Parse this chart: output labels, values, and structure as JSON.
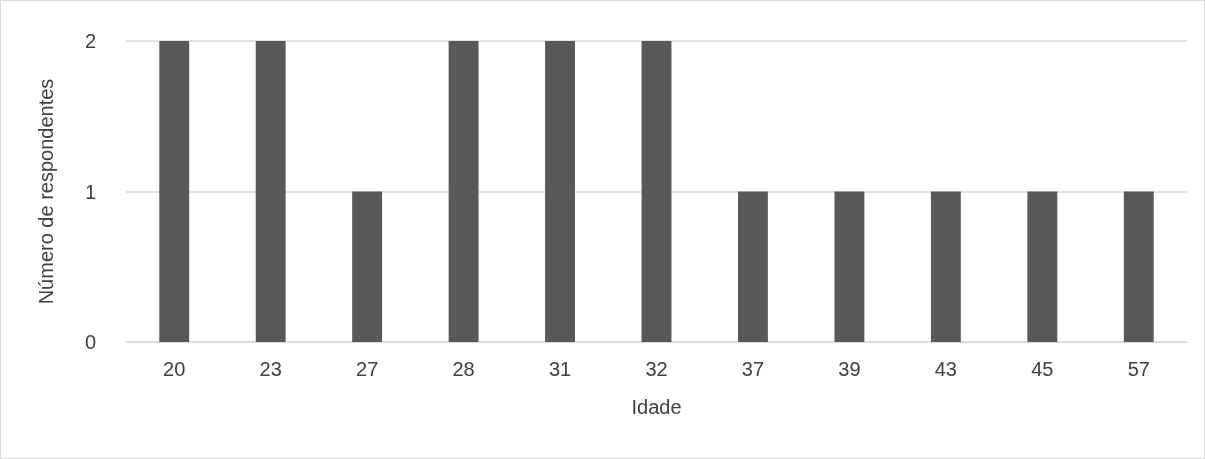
{
  "chart_data": {
    "type": "bar",
    "xlabel": "Idade",
    "ylabel": "Número de respondentes",
    "categories": [
      "20",
      "23",
      "27",
      "28",
      "31",
      "32",
      "37",
      "39",
      "43",
      "45",
      "57"
    ],
    "values": [
      2,
      2,
      1,
      2,
      2,
      2,
      1,
      1,
      1,
      1,
      1
    ],
    "color": "#595959",
    "ylim": [
      0,
      2
    ],
    "yticks": [
      0,
      1,
      2
    ],
    "grid": "y"
  }
}
